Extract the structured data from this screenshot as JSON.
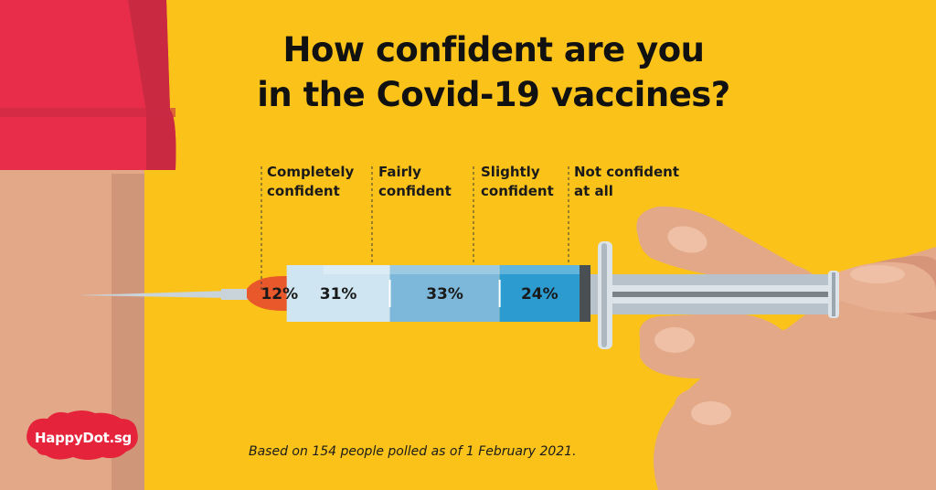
{
  "title_line1": "How confident are you",
  "title_line2": "in the Covid-19 vaccines?",
  "footnote": "Based on 154 people polled as of 1 February 2021.",
  "logo_text": "HappyDot.sg",
  "colors": {
    "background": "#FBC31A",
    "completely": "#E8582A",
    "fairly": "#CFE6F2",
    "slightly": "#7DB8DA",
    "not_at_all": "#2C9BD0",
    "logo": "#E5233A"
  },
  "chart_data": {
    "type": "bar",
    "orientation": "horizontal-stacked",
    "title": "How confident are you in the Covid-19 vaccines?",
    "categories": [
      "Completely confident",
      "Fairly confident",
      "Slightly confident",
      "Not confident at all"
    ],
    "labels": [
      "Completely\nconfident",
      "Fairly\nconfident",
      "Slightly\nconfident",
      "Not confident\nat all"
    ],
    "values": [
      12,
      31,
      33,
      24
    ],
    "value_labels": [
      "12%",
      "31%",
      "33%",
      "24%"
    ],
    "unit": "%",
    "xlabel": "",
    "ylabel": ""
  }
}
